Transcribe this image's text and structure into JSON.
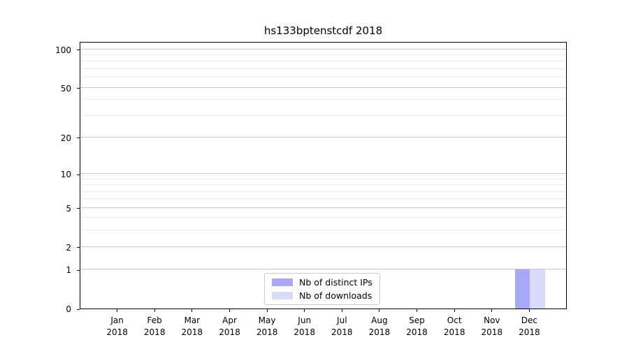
{
  "chart_data": {
    "type": "bar",
    "title": "hs133bptenstcdf 2018",
    "categories": [
      "Jan 2018",
      "Feb 2018",
      "Mar 2018",
      "Apr 2018",
      "May 2018",
      "Jun 2018",
      "Jul 2018",
      "Aug 2018",
      "Sep 2018",
      "Oct 2018",
      "Nov 2018",
      "Dec 2018"
    ],
    "series": [
      {
        "name": "Nb of distinct IPs",
        "color": "#a8a8f5",
        "values": [
          0,
          0,
          0,
          0,
          0,
          0,
          0,
          0,
          0,
          0,
          0,
          1
        ]
      },
      {
        "name": "Nb of downloads",
        "color": "#d9d9f8",
        "values": [
          0,
          0,
          0,
          0,
          0,
          0,
          0,
          0,
          0,
          0,
          0,
          1
        ]
      }
    ],
    "xlabel": "",
    "ylabel": "",
    "y_scale": "log1p",
    "y_major_ticks": [
      0,
      1,
      2,
      5,
      10,
      20,
      50,
      100
    ],
    "y_minor_ticks": [
      3,
      4,
      6,
      7,
      8,
      9,
      30,
      40,
      60,
      70,
      80,
      90
    ],
    "ylim": [
      0,
      115
    ],
    "grid": "horizontal",
    "legend_position": "lower center",
    "colors": {
      "major_grid": "#c9c9c9",
      "minor_grid": "#ececec",
      "spine": "#000000",
      "text": "#000000"
    }
  }
}
